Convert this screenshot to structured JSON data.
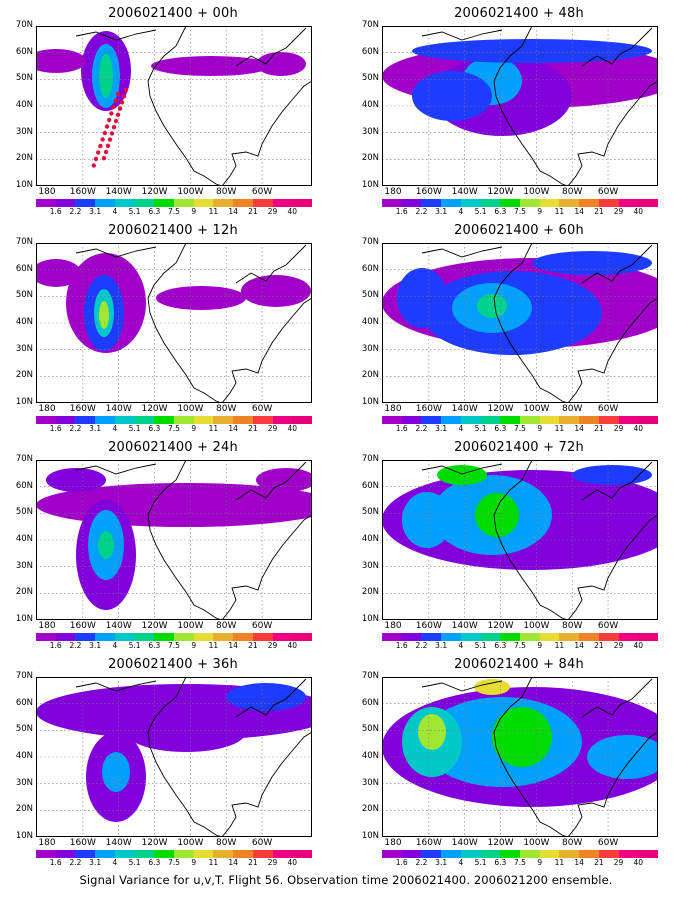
{
  "caption": "Signal Variance for u,v,T. Flight 56. Observation time 2006021400. 2006021200 ensemble.",
  "lat_labels": [
    "70N",
    "60N",
    "50N",
    "40N",
    "30N",
    "20N",
    "10N"
  ],
  "lon_labels": [
    "180",
    "160W",
    "140W",
    "120W",
    "100W",
    "80W",
    "60W"
  ],
  "colorbar": {
    "labels": [
      "1.6",
      "2.2",
      "3.1",
      "4",
      "5.1",
      "6.3",
      "7.5",
      "9",
      "11",
      "14",
      "21",
      "29",
      "40"
    ],
    "colors": [
      "#a000c8",
      "#8200dc",
      "#1e3cff",
      "#00a0ff",
      "#00c8c8",
      "#00d28c",
      "#00dc00",
      "#a0e632",
      "#e6dc32",
      "#e6af2d",
      "#f08228",
      "#fa3c3c",
      "#f00082",
      "#e6007a"
    ]
  },
  "panels": [
    {
      "title": "2006021400 + 00h",
      "flight_track": true
    },
    {
      "title": "2006021400 + 48h",
      "flight_track": false
    },
    {
      "title": "2006021400 + 12h",
      "flight_track": false
    },
    {
      "title": "2006021400 + 60h",
      "flight_track": false
    },
    {
      "title": "2006021400 + 24h",
      "flight_track": false
    },
    {
      "title": "2006021400 + 72h",
      "flight_track": false
    },
    {
      "title": "2006021400 + 36h",
      "flight_track": false
    },
    {
      "title": "2006021400 + 84h",
      "flight_track": false
    }
  ]
}
